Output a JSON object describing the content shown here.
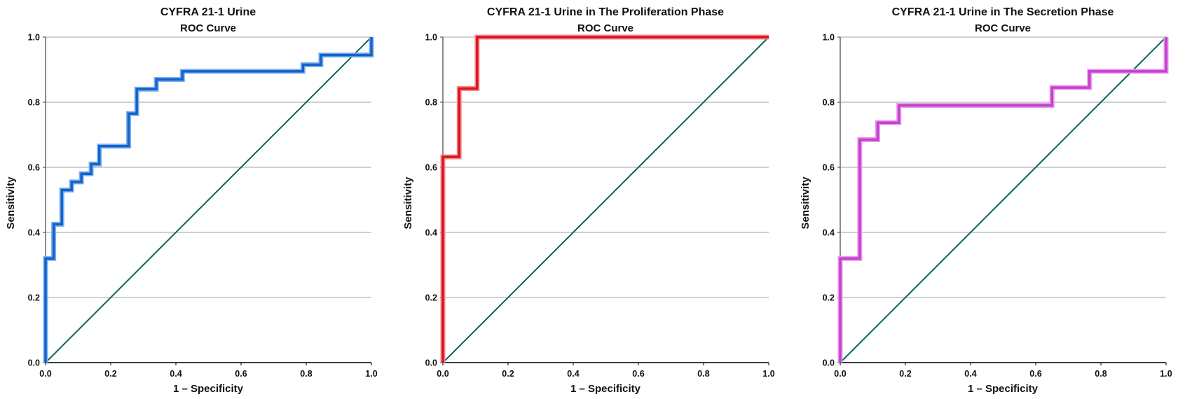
{
  "figure": {
    "background": "#ffffff",
    "grid_color": "#b3b3b3",
    "x_axis_color": "#3c3c3c",
    "y_axis_color": "#6e6e6e",
    "text_color": "#111111"
  },
  "chart_data": [
    {
      "type": "line",
      "subtype": "roc-step-curve",
      "title": "CYFRA 21-1 Urine",
      "subtitle": "ROC Curve",
      "xlabel": "1 – Specificity",
      "ylabel": "Sensitivity",
      "xlim": [
        0,
        1
      ],
      "ylim": [
        0,
        1
      ],
      "xtick_labels": [
        "0.0",
        "0.2",
        "0.4",
        "0.6",
        "0.8",
        "1.0"
      ],
      "ytick_labels": [
        "0.0",
        "0.2",
        "0.4",
        "0.6",
        "0.8",
        "1.0"
      ],
      "grid": "horizontal",
      "legend": "none",
      "curve_color": "#1263cc",
      "curve_halo_color": "#7fb0ea",
      "reference_color": "#00655d",
      "reference_line": [
        [
          0,
          0
        ],
        [
          1,
          1
        ]
      ],
      "roc_points": [
        [
          0,
          0
        ],
        [
          0,
          0.32
        ],
        [
          0.025,
          0.32
        ],
        [
          0.025,
          0.425
        ],
        [
          0.05,
          0.425
        ],
        [
          0.05,
          0.53
        ],
        [
          0.08,
          0.53
        ],
        [
          0.08,
          0.555
        ],
        [
          0.11,
          0.555
        ],
        [
          0.11,
          0.58
        ],
        [
          0.14,
          0.58
        ],
        [
          0.14,
          0.61
        ],
        [
          0.165,
          0.61
        ],
        [
          0.165,
          0.665
        ],
        [
          0.255,
          0.665
        ],
        [
          0.255,
          0.765
        ],
        [
          0.28,
          0.765
        ],
        [
          0.28,
          0.84
        ],
        [
          0.34,
          0.84
        ],
        [
          0.34,
          0.87
        ],
        [
          0.42,
          0.87
        ],
        [
          0.42,
          0.895
        ],
        [
          0.79,
          0.895
        ],
        [
          0.79,
          0.915
        ],
        [
          0.845,
          0.915
        ],
        [
          0.845,
          0.945
        ],
        [
          1,
          0.945
        ],
        [
          1,
          1
        ]
      ]
    },
    {
      "type": "line",
      "subtype": "roc-step-curve",
      "title": "CYFRA 21-1 Urine in The Proliferation Phase",
      "subtitle": "ROC Curve",
      "xlabel": "1 – Specificity",
      "ylabel": "Sensitivity",
      "xlim": [
        0,
        1
      ],
      "ylim": [
        0,
        1
      ],
      "xtick_labels": [
        "0.0",
        "0.2",
        "0.4",
        "0.6",
        "0.8",
        "1.0"
      ],
      "ytick_labels": [
        "0.0",
        "0.2",
        "0.4",
        "0.6",
        "0.8",
        "1.0"
      ],
      "grid": "horizontal",
      "legend": "none",
      "curve_color": "#e01119",
      "curve_halo_color": "#ef9094",
      "reference_color": "#00655d",
      "reference_line": [
        [
          0,
          0
        ],
        [
          1,
          1
        ]
      ],
      "roc_points": [
        [
          0,
          0
        ],
        [
          0,
          0.632
        ],
        [
          0.05,
          0.632
        ],
        [
          0.05,
          0.842
        ],
        [
          0.105,
          0.842
        ],
        [
          0.105,
          1
        ],
        [
          1,
          1
        ]
      ]
    },
    {
      "type": "line",
      "subtype": "roc-step-curve",
      "title": "CYFRA 21-1  Urine in The Secretion Phase",
      "subtitle": "ROC Curve",
      "xlabel": "1 – Specificity",
      "ylabel": "Sensitivity",
      "xlim": [
        0,
        1
      ],
      "ylim": [
        0,
        1
      ],
      "xtick_labels": [
        "0.0",
        "0.2",
        "0.4",
        "0.6",
        "0.8",
        "1.0"
      ],
      "ytick_labels": [
        "0.0",
        "0.2",
        "0.4",
        "0.6",
        "0.8",
        "1.0"
      ],
      "grid": "horizontal",
      "legend": "none",
      "curve_color": "#c73ed2",
      "curve_halo_color": "#e49ae8",
      "reference_color": "#00655d",
      "reference_line": [
        [
          0,
          0
        ],
        [
          1,
          1
        ]
      ],
      "roc_points": [
        [
          0,
          0
        ],
        [
          0,
          0.32
        ],
        [
          0.06,
          0.32
        ],
        [
          0.06,
          0.685
        ],
        [
          0.115,
          0.685
        ],
        [
          0.115,
          0.737
        ],
        [
          0.18,
          0.737
        ],
        [
          0.18,
          0.79
        ],
        [
          0.65,
          0.79
        ],
        [
          0.65,
          0.845
        ],
        [
          0.765,
          0.845
        ],
        [
          0.765,
          0.895
        ],
        [
          1,
          0.895
        ],
        [
          1,
          1
        ]
      ]
    }
  ]
}
